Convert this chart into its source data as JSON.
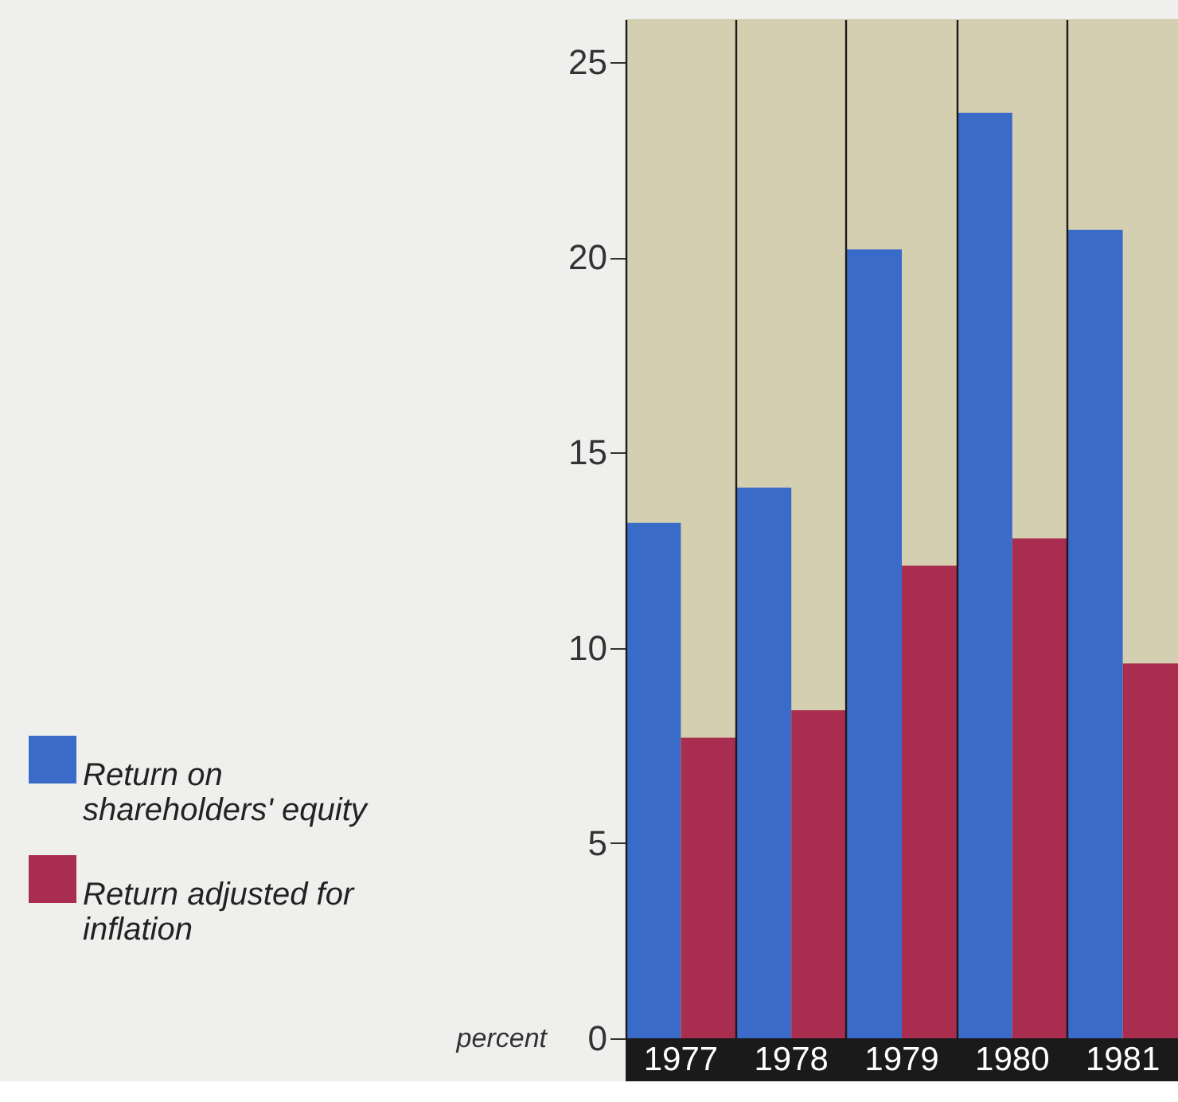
{
  "chart_data": {
    "type": "bar",
    "ylabel": "percent",
    "categories": [
      "1977",
      "1978",
      "1979",
      "1980",
      "1981"
    ],
    "series": [
      {
        "name": "Return on shareholders' equity",
        "color": "#3a6bc8",
        "values": [
          13.2,
          14.1,
          20.2,
          23.7,
          20.7
        ]
      },
      {
        "name": "Return adjusted for inflation",
        "color": "#a82d4e",
        "values": [
          7.7,
          8.4,
          12.1,
          12.8,
          9.6
        ]
      }
    ],
    "ylim": [
      0,
      26.1
    ],
    "yticks": [
      0,
      5,
      10,
      15,
      20,
      25
    ],
    "grid": "x",
    "legend": "left"
  }
}
